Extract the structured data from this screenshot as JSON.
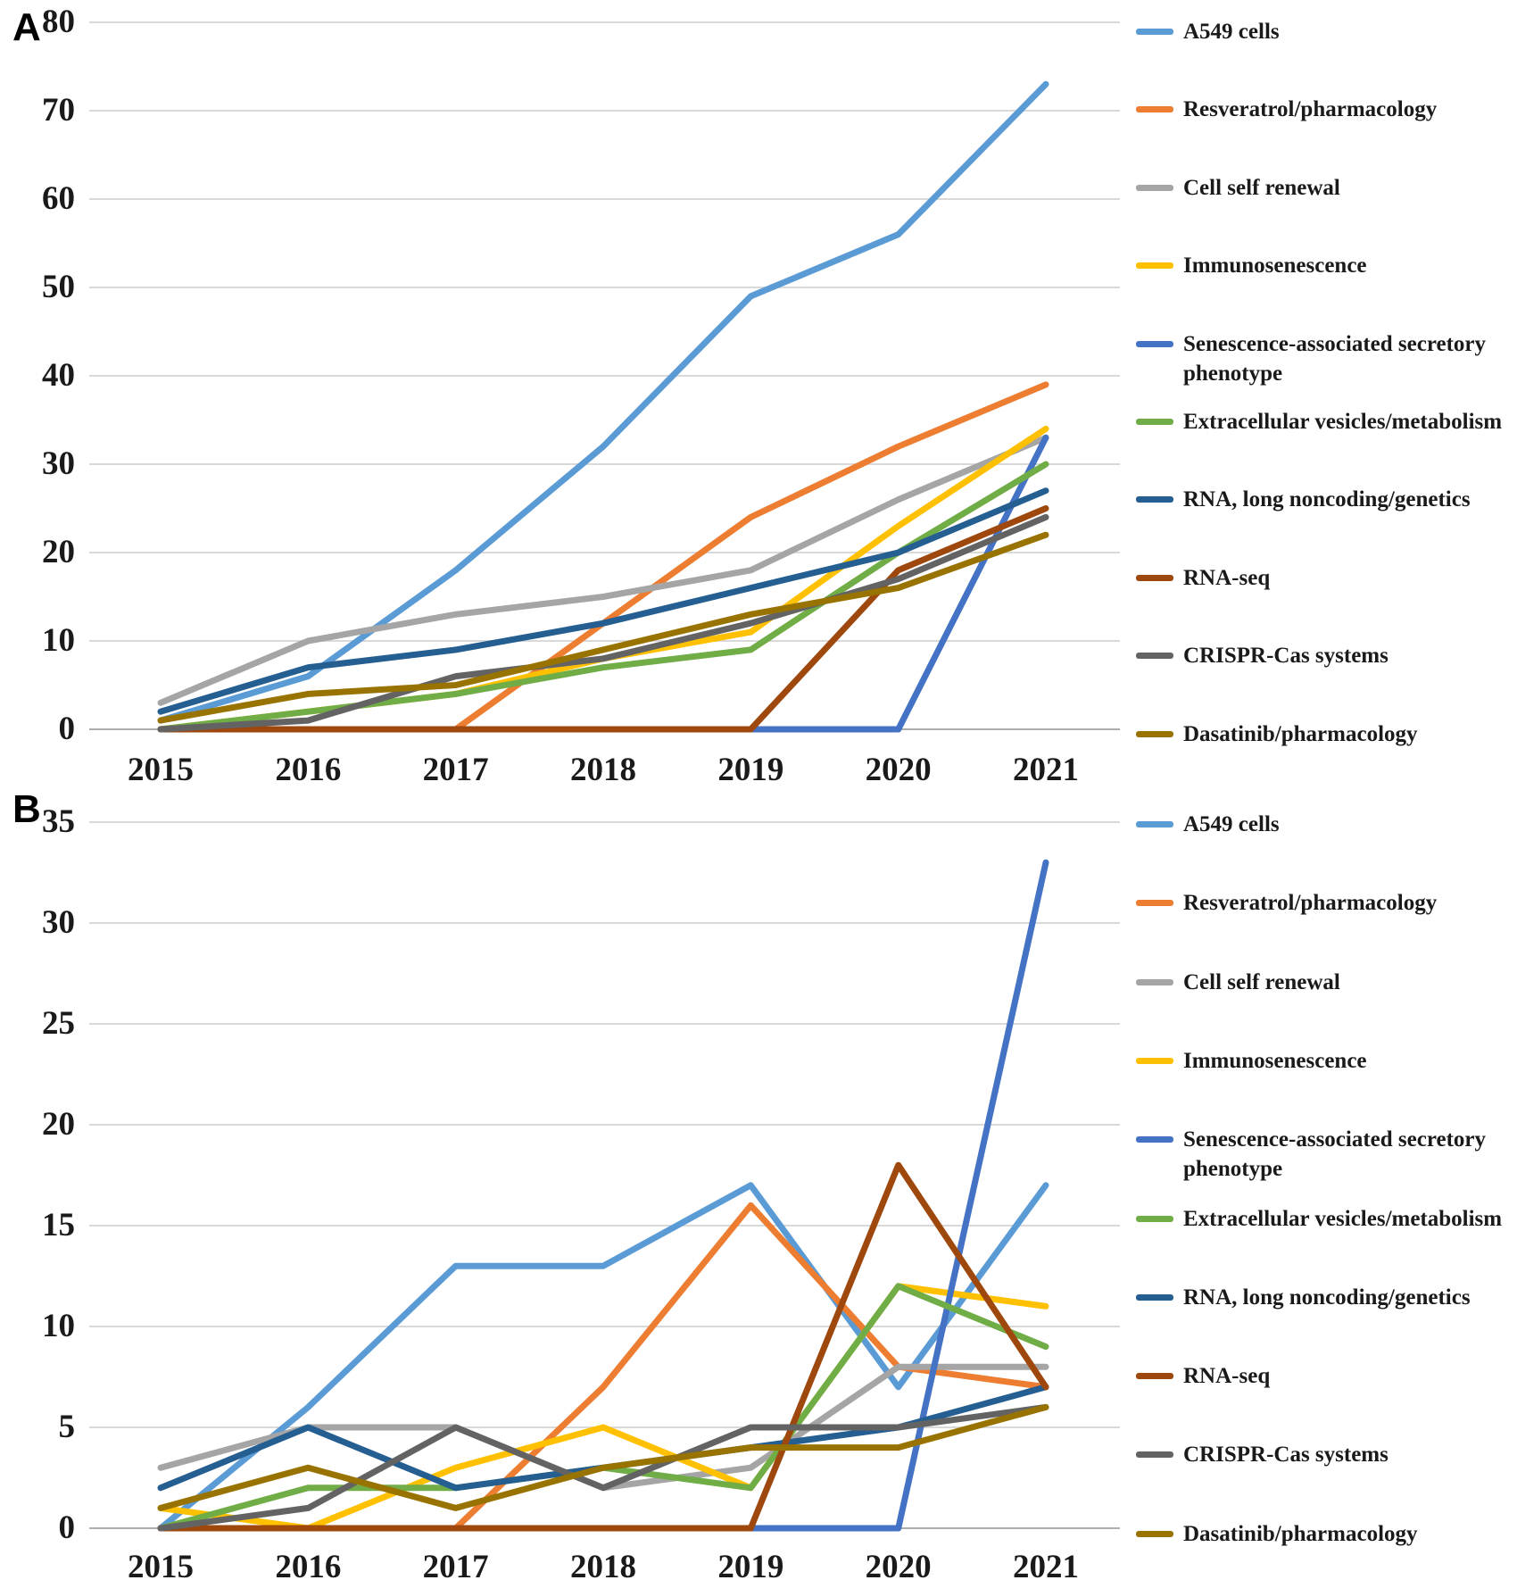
{
  "figure": {
    "panel_a_label": "A",
    "panel_b_label": "B"
  },
  "chart_data": [
    {
      "panel": "A",
      "type": "line",
      "title": "",
      "xlabel": "",
      "ylabel": "",
      "grid": true,
      "legend_position": "right",
      "x_categories": [
        "2015",
        "2016",
        "2017",
        "2018",
        "2019",
        "2020",
        "2021"
      ],
      "ylim": [
        0,
        80
      ],
      "y_ticks": [
        0,
        10,
        20,
        30,
        40,
        50,
        60,
        70,
        80
      ],
      "series": [
        {
          "name": "A549 cells",
          "color": "#5B9BD5",
          "values": [
            1,
            6,
            18,
            32,
            49,
            56,
            73
          ]
        },
        {
          "name": "Resveratrol/pharmacology",
          "color": "#ED7D31",
          "values": [
            0,
            0,
            0,
            12,
            24,
            32,
            39
          ]
        },
        {
          "name": "Cell self renewal",
          "color": "#A5A5A5",
          "values": [
            3,
            10,
            13,
            15,
            18,
            26,
            33
          ]
        },
        {
          "name": "Immunosenescence",
          "color": "#FFC000",
          "values": [
            0,
            2,
            4,
            8,
            11,
            23,
            34
          ]
        },
        {
          "name": "Senescence-associated secretory phenotype",
          "color": "#4472C4",
          "values": [
            0,
            0,
            0,
            0,
            0,
            0,
            33
          ]
        },
        {
          "name": "Extracellular vesicles/metabolism",
          "color": "#70AD47",
          "values": [
            0,
            2,
            4,
            7,
            9,
            20,
            30
          ]
        },
        {
          "name": "RNA, long noncoding/genetics",
          "color": "#255E91",
          "values": [
            2,
            7,
            9,
            12,
            16,
            20,
            27
          ]
        },
        {
          "name": "RNA-seq",
          "color": "#9E480E",
          "values": [
            0,
            0,
            0,
            0,
            0,
            18,
            25
          ]
        },
        {
          "name": "CRISPR-Cas systems",
          "color": "#636363",
          "values": [
            0,
            1,
            6,
            8,
            12,
            17,
            24
          ]
        },
        {
          "name": "Dasatinib/pharmacology",
          "color": "#997300",
          "values": [
            1,
            4,
            5,
            9,
            13,
            16,
            22
          ]
        }
      ]
    },
    {
      "panel": "B",
      "type": "line",
      "title": "",
      "xlabel": "",
      "ylabel": "",
      "grid": true,
      "legend_position": "right",
      "x_categories": [
        "2015",
        "2016",
        "2017",
        "2018",
        "2019",
        "2020",
        "2021"
      ],
      "ylim": [
        0,
        35
      ],
      "y_ticks": [
        0,
        5,
        10,
        15,
        20,
        25,
        30,
        35
      ],
      "series": [
        {
          "name": "A549 cells",
          "color": "#5B9BD5",
          "values": [
            0,
            6,
            13,
            13,
            17,
            7,
            17
          ]
        },
        {
          "name": "Resveratrol/pharmacology",
          "color": "#ED7D31",
          "values": [
            0,
            0,
            0,
            7,
            16,
            8,
            7
          ]
        },
        {
          "name": "Cell self renewal",
          "color": "#A5A5A5",
          "values": [
            3,
            5,
            5,
            2,
            3,
            8,
            8
          ]
        },
        {
          "name": "Immunosenescence",
          "color": "#FFC000",
          "values": [
            1,
            0,
            3,
            5,
            2,
            12,
            11
          ]
        },
        {
          "name": "Senescence-associated secretory phenotype",
          "color": "#4472C4",
          "values": [
            0,
            0,
            0,
            0,
            0,
            0,
            33
          ]
        },
        {
          "name": "Extracellular vesicles/metabolism",
          "color": "#70AD47",
          "values": [
            0,
            2,
            2,
            3,
            2,
            12,
            9
          ]
        },
        {
          "name": "RNA, long noncoding/genetics",
          "color": "#255E91",
          "values": [
            2,
            5,
            2,
            3,
            4,
            5,
            7
          ]
        },
        {
          "name": "RNA-seq",
          "color": "#9E480E",
          "values": [
            0,
            0,
            0,
            0,
            0,
            18,
            7
          ]
        },
        {
          "name": "CRISPR-Cas systems",
          "color": "#636363",
          "values": [
            0,
            1,
            5,
            2,
            5,
            5,
            6
          ]
        },
        {
          "name": "Dasatinib/pharmacology",
          "color": "#997300",
          "values": [
            1,
            3,
            1,
            3,
            4,
            4,
            6
          ]
        }
      ]
    }
  ]
}
